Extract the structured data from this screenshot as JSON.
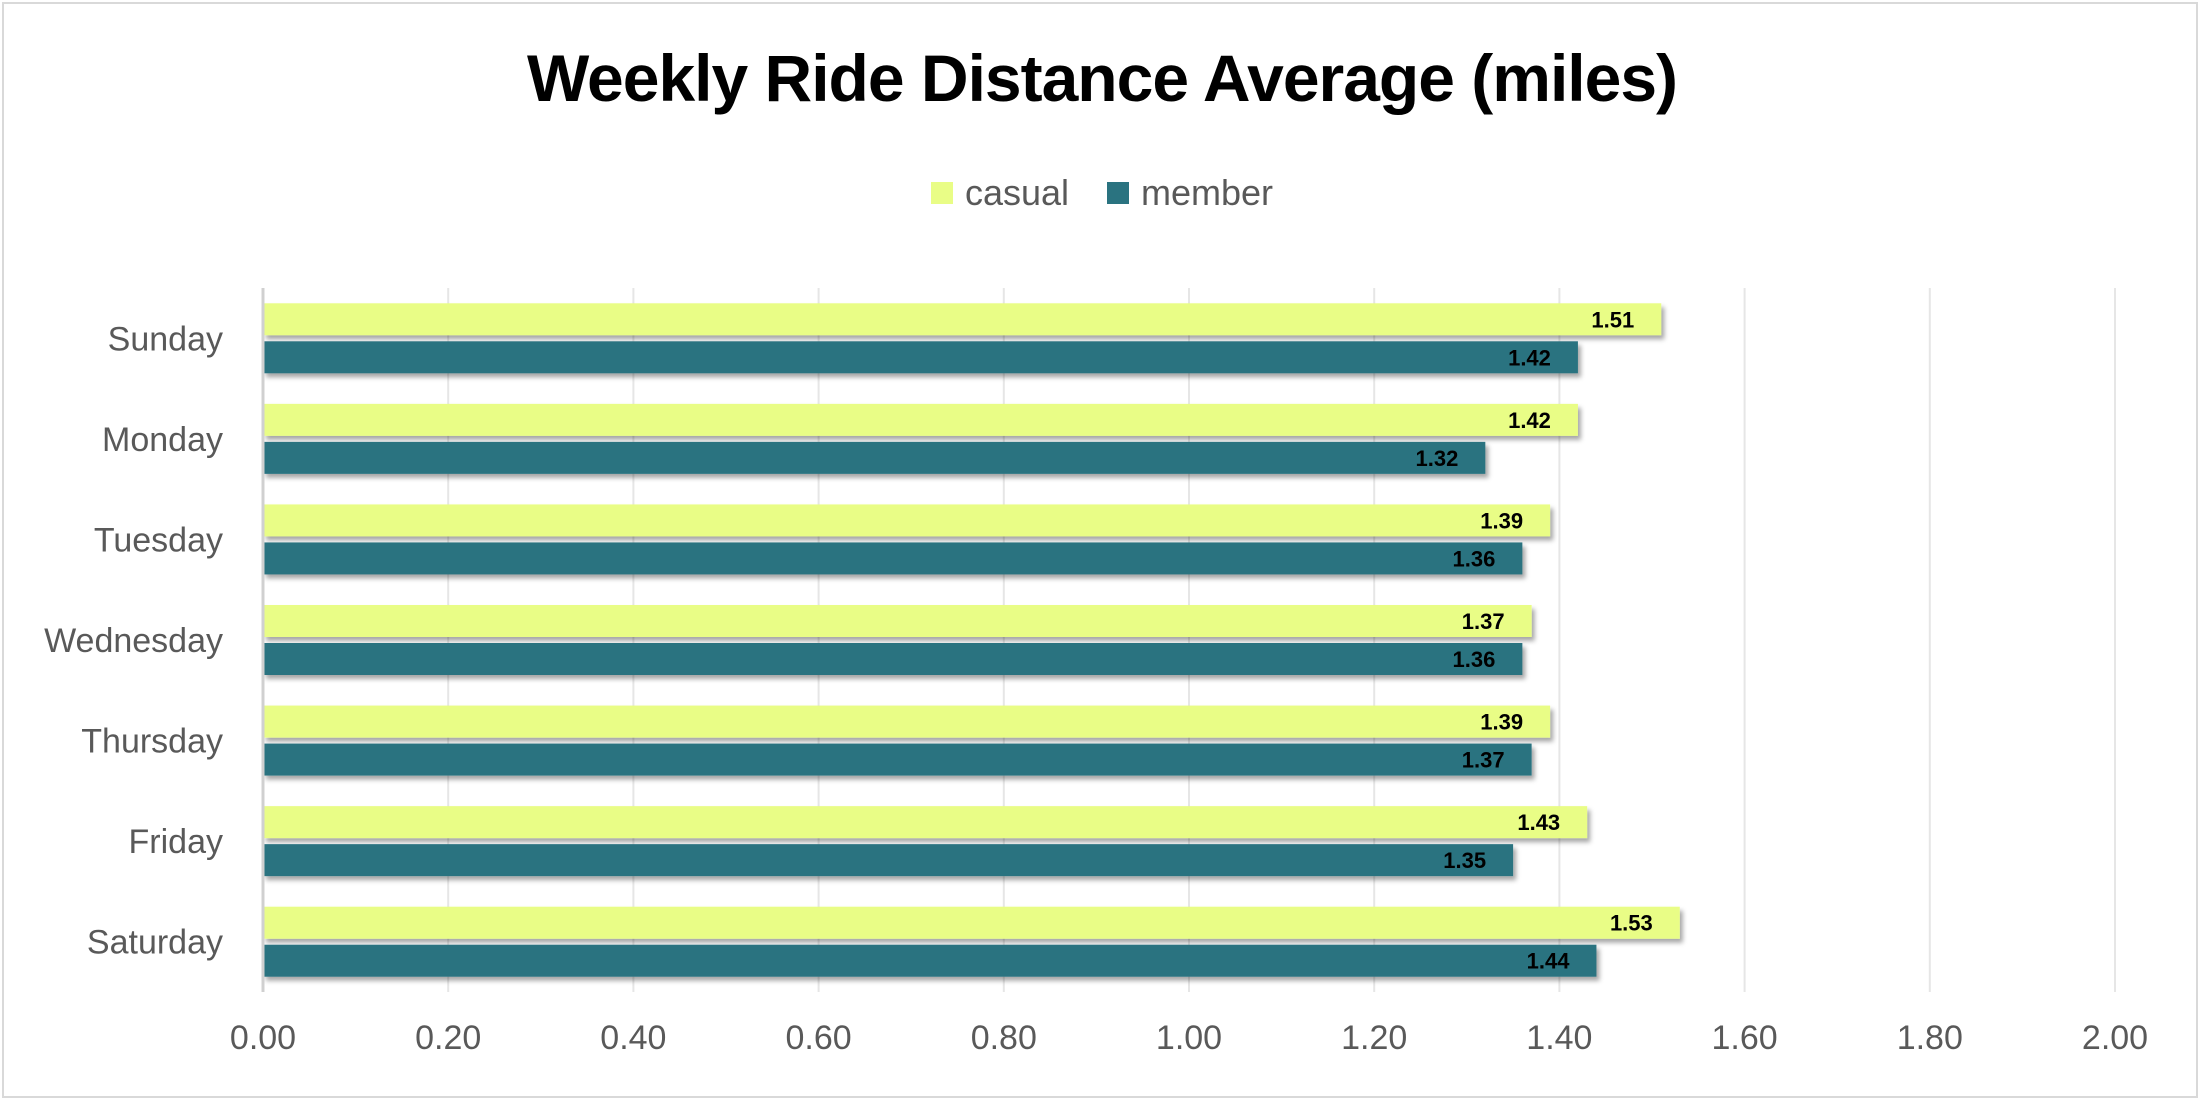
{
  "chart_data": {
    "type": "bar",
    "orientation": "horizontal",
    "title": "Weekly Ride Distance Average (miles)",
    "xlabel": "",
    "ylabel": "",
    "categories": [
      "Sunday",
      "Monday",
      "Tuesday",
      "Wednesday",
      "Thursday",
      "Friday",
      "Saturday"
    ],
    "series": [
      {
        "name": "casual",
        "color": "#e9fd86",
        "values": [
          1.51,
          1.42,
          1.39,
          1.37,
          1.39,
          1.43,
          1.53
        ]
      },
      {
        "name": "member",
        "color": "#2a7380",
        "values": [
          1.42,
          1.32,
          1.36,
          1.36,
          1.37,
          1.35,
          1.44
        ]
      }
    ],
    "xlim": [
      0,
      2
    ],
    "x_ticks": [
      "0.00",
      "0.20",
      "0.40",
      "0.60",
      "0.80",
      "1.00",
      "1.20",
      "1.40",
      "1.60",
      "1.80",
      "2.00"
    ],
    "grid": "vertical",
    "legend_position": "top"
  }
}
